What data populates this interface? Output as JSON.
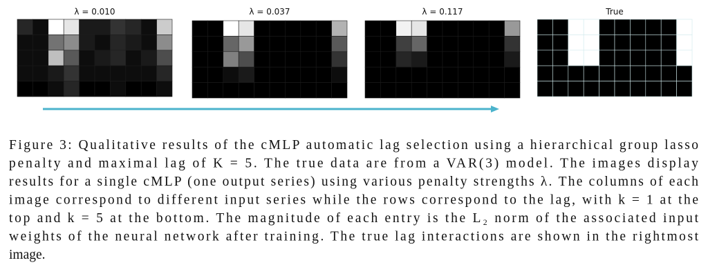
{
  "panels": [
    {
      "title": "λ = 0.010",
      "cells": [
        [
          0.15,
          0.05,
          1.0,
          0.9,
          0.1,
          0.1,
          0.2,
          0.15,
          0.05,
          0.8
        ],
        [
          0.05,
          0.05,
          0.45,
          0.55,
          0.1,
          0.05,
          0.15,
          0.1,
          0.05,
          0.55
        ],
        [
          0.05,
          0.05,
          0.75,
          0.35,
          0.05,
          0.1,
          0.15,
          0.05,
          0.1,
          0.3
        ],
        [
          0.05,
          0.05,
          0.1,
          0.2,
          0.05,
          0.05,
          0.05,
          0.05,
          0.05,
          0.15
        ],
        [
          0,
          0,
          0.05,
          0.15,
          0,
          0,
          0.05,
          0,
          0,
          0.05
        ]
      ]
    },
    {
      "title": "λ = 0.037",
      "cells": [
        [
          0,
          0,
          1.0,
          0.9,
          0,
          0,
          0,
          0,
          0,
          0.7
        ],
        [
          0,
          0,
          0.4,
          0.6,
          0,
          0,
          0,
          0,
          0,
          0.35
        ],
        [
          0,
          0,
          0.5,
          0.3,
          0,
          0,
          0,
          0,
          0,
          0.2
        ],
        [
          0,
          0,
          0.05,
          0.1,
          0,
          0,
          0,
          0,
          0,
          0.05
        ],
        [
          0,
          0,
          0,
          0,
          0,
          0,
          0,
          0,
          0,
          0
        ]
      ]
    },
    {
      "title": "λ = 0.117",
      "cells": [
        [
          0,
          0,
          0.95,
          0.9,
          0,
          0,
          0,
          0,
          0,
          0.6
        ],
        [
          0,
          0,
          0.25,
          0.4,
          0,
          0,
          0,
          0,
          0,
          0.2
        ],
        [
          0,
          0,
          0.15,
          0.1,
          0,
          0,
          0,
          0,
          0,
          0.1
        ],
        [
          0,
          0,
          0,
          0,
          0,
          0,
          0,
          0,
          0,
          0
        ],
        [
          0,
          0,
          0,
          0,
          0,
          0,
          0,
          0,
          0,
          0
        ]
      ]
    },
    {
      "title": "True",
      "cells": [
        [
          0,
          0,
          1,
          1,
          0,
          0,
          0,
          0,
          0,
          1
        ],
        [
          0,
          0,
          1,
          1,
          0,
          0,
          0,
          0,
          0,
          1
        ],
        [
          0,
          0,
          1,
          1,
          0,
          0,
          0,
          0,
          0,
          1
        ],
        [
          0,
          0,
          0,
          0,
          0,
          0,
          0,
          0,
          0,
          0
        ],
        [
          0,
          0,
          0,
          0,
          0,
          0,
          0,
          0,
          0,
          0
        ]
      ]
    }
  ],
  "caption": [
    "Figure 3: Qualitative results of the cMLP automatic lag selection using a hierarchical group lasso",
    "penalty and maximal lag of K = 5. The true data are from a VAR(3) model. The images display",
    "results for a single cMLP (one output series) using various penalty strengths λ. The columns of each",
    "image correspond to different input series while the rows correspond to the lag, with k = 1 at the",
    "top and k = 5 at the bottom. The magnitude of each entry is the L₂ norm of the associated input",
    "weights of the neural network after training. The true lag interactions are shown in the rightmost",
    "image."
  ]
}
